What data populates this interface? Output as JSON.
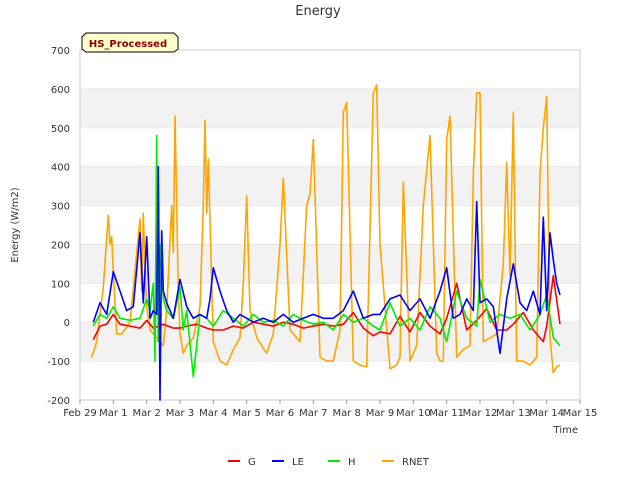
{
  "chart_data": {
    "type": "line",
    "title": "Energy",
    "xlabel": "Time",
    "ylabel": "Energy (W/m2)",
    "badge": "HS_Processed",
    "ylim": [
      -200,
      700
    ],
    "yticks": [
      -200,
      -100,
      0,
      100,
      200,
      300,
      400,
      500,
      600,
      700
    ],
    "xlim": [
      0,
      15
    ],
    "xtick_labels": [
      "Feb 29",
      "Mar 1",
      "Mar 2",
      "Mar 3",
      "Mar 4",
      "Mar 5",
      "Mar 6",
      "Mar 7",
      "Mar 8",
      "Mar 9",
      "Mar 10",
      "Mar 11",
      "Mar 12",
      "Mar 13",
      "Mar 14",
      "Mar 15"
    ],
    "grid": "horizontal bands",
    "legend_position": "bottom",
    "colors": {
      "G": "#ff0000",
      "LE": "#0000ff",
      "H": "#00ee00",
      "RNET": "#ffa500",
      "band": "#f2f2f2",
      "badge_fill": "#ffffcc",
      "badge_text": "#8b0000"
    },
    "series": [
      {
        "name": "G",
        "x": [
          0.4,
          0.6,
          0.8,
          1.0,
          1.2,
          1.5,
          1.8,
          2.0,
          2.2,
          2.5,
          2.8,
          3.0,
          3.2,
          3.5,
          3.8,
          4.0,
          4.3,
          4.6,
          4.9,
          5.2,
          5.5,
          5.8,
          6.1,
          6.4,
          6.7,
          7.0,
          7.3,
          7.6,
          7.9,
          8.2,
          8.5,
          8.8,
          9.0,
          9.3,
          9.6,
          9.9,
          10.2,
          10.5,
          10.8,
          11.0,
          11.3,
          11.6,
          11.9,
          12.2,
          12.5,
          12.8,
          13.0,
          13.3,
          13.6,
          13.9,
          14.0,
          14.2,
          14.4
        ],
        "y": [
          -45,
          -10,
          -5,
          20,
          -5,
          -10,
          -15,
          5,
          -15,
          -5,
          -15,
          -15,
          -10,
          -5,
          -15,
          -20,
          -20,
          -10,
          -15,
          0,
          -5,
          -10,
          0,
          -5,
          -15,
          -10,
          -5,
          -10,
          -5,
          25,
          -15,
          -35,
          -25,
          -30,
          15,
          -25,
          25,
          -10,
          -30,
          10,
          100,
          -20,
          5,
          35,
          -20,
          -20,
          -5,
          25,
          -20,
          -50,
          -10,
          120,
          -5
        ]
      },
      {
        "name": "LE",
        "x": [
          0.4,
          0.6,
          0.8,
          1.0,
          1.2,
          1.4,
          1.6,
          1.8,
          1.9,
          2.0,
          2.1,
          2.2,
          2.3,
          2.35,
          2.4,
          2.45,
          2.5,
          2.6,
          2.8,
          3.0,
          3.2,
          3.4,
          3.6,
          3.8,
          3.9,
          4.0,
          4.2,
          4.4,
          4.6,
          4.8,
          5.0,
          5.2,
          5.5,
          5.8,
          6.1,
          6.4,
          6.7,
          7.0,
          7.3,
          7.6,
          7.9,
          8.2,
          8.5,
          8.8,
          9.0,
          9.3,
          9.6,
          9.9,
          10.2,
          10.5,
          10.8,
          11.0,
          11.2,
          11.4,
          11.6,
          11.8,
          11.9,
          12.0,
          12.2,
          12.4,
          12.6,
          12.8,
          13.0,
          13.2,
          13.4,
          13.6,
          13.8,
          13.9,
          14.0,
          14.1,
          14.2,
          14.3,
          14.4
        ],
        "y": [
          0,
          50,
          20,
          130,
          80,
          30,
          40,
          230,
          50,
          220,
          10,
          30,
          20,
          400,
          -200,
          235,
          80,
          50,
          10,
          110,
          40,
          10,
          20,
          10,
          60,
          140,
          80,
          30,
          0,
          20,
          10,
          0,
          10,
          0,
          20,
          0,
          10,
          20,
          10,
          10,
          30,
          80,
          10,
          20,
          20,
          60,
          70,
          30,
          60,
          10,
          80,
          140,
          10,
          20,
          60,
          30,
          310,
          50,
          60,
          40,
          -80,
          60,
          150,
          50,
          30,
          80,
          20,
          270,
          30,
          230,
          160,
          100,
          70
        ]
      },
      {
        "name": "H",
        "x": [
          0.4,
          0.6,
          0.8,
          1.0,
          1.2,
          1.5,
          1.8,
          2.0,
          2.1,
          2.2,
          2.25,
          2.3,
          2.35,
          2.4,
          2.5,
          2.6,
          2.8,
          3.0,
          3.1,
          3.2,
          3.4,
          3.6,
          3.8,
          4.0,
          4.3,
          4.6,
          4.9,
          5.2,
          5.5,
          5.8,
          6.1,
          6.4,
          6.7,
          7.0,
          7.3,
          7.6,
          7.9,
          8.2,
          8.5,
          8.8,
          9.0,
          9.3,
          9.6,
          9.9,
          10.2,
          10.5,
          10.8,
          11.0,
          11.3,
          11.6,
          11.9,
          12.0,
          12.3,
          12.6,
          12.9,
          13.2,
          13.5,
          13.8,
          14.0,
          14.2,
          14.4
        ],
        "y": [
          -10,
          20,
          10,
          40,
          10,
          5,
          10,
          60,
          30,
          100,
          -100,
          480,
          -50,
          200,
          60,
          30,
          10,
          90,
          -20,
          30,
          -140,
          20,
          10,
          -10,
          30,
          10,
          -10,
          20,
          0,
          5,
          -10,
          20,
          5,
          -5,
          0,
          -20,
          20,
          0,
          10,
          -10,
          -20,
          50,
          -10,
          10,
          -20,
          40,
          10,
          -50,
          80,
          10,
          -10,
          110,
          0,
          20,
          10,
          20,
          -20,
          20,
          70,
          -40,
          -60
        ]
      },
      {
        "name": "RNET",
        "x": [
          0.35,
          0.5,
          0.7,
          0.85,
          0.9,
          0.95,
          1.0,
          1.1,
          1.25,
          1.5,
          1.8,
          1.85,
          1.9,
          1.95,
          2.0,
          2.1,
          2.3,
          2.5,
          2.6,
          2.75,
          2.8,
          2.85,
          2.95,
          3.0,
          3.1,
          3.2,
          3.4,
          3.6,
          3.7,
          3.75,
          3.8,
          3.85,
          4.0,
          4.2,
          4.4,
          4.6,
          4.8,
          4.9,
          5.0,
          5.1,
          5.3,
          5.6,
          5.8,
          6.0,
          6.1,
          6.3,
          6.6,
          6.8,
          6.9,
          7.0,
          7.2,
          7.4,
          7.6,
          7.8,
          7.9,
          8.0,
          8.2,
          8.4,
          8.6,
          8.8,
          8.9,
          9.0,
          9.3,
          9.5,
          9.6,
          9.7,
          9.9,
          10.1,
          10.3,
          10.5,
          10.7,
          10.8,
          10.9,
          11.0,
          11.1,
          11.3,
          11.5,
          11.7,
          11.8,
          11.9,
          12.0,
          12.1,
          12.3,
          12.5,
          12.7,
          12.8,
          12.9,
          13.0,
          13.1,
          13.3,
          13.5,
          13.7,
          13.8,
          13.9,
          14.0,
          14.1,
          14.2,
          14.3,
          14.4
        ],
        "y": [
          -90,
          -50,
          90,
          275,
          200,
          220,
          130,
          -30,
          -30,
          0,
          265,
          80,
          280,
          150,
          40,
          -20,
          -40,
          -60,
          30,
          300,
          180,
          530,
          80,
          -30,
          -80,
          -60,
          -40,
          40,
          300,
          520,
          280,
          420,
          -50,
          -100,
          -110,
          -70,
          -40,
          100,
          325,
          30,
          -40,
          -80,
          -30,
          200,
          370,
          -20,
          -50,
          300,
          330,
          470,
          -90,
          -100,
          -100,
          -20,
          540,
          565,
          -100,
          -110,
          -115,
          590,
          610,
          200,
          -120,
          -110,
          -90,
          360,
          -100,
          -60,
          300,
          480,
          -80,
          -100,
          -100,
          470,
          530,
          -90,
          -70,
          -60,
          380,
          590,
          590,
          -50,
          -40,
          -30,
          150,
          410,
          120,
          540,
          -100,
          -100,
          -110,
          -90,
          380,
          500,
          580,
          -40,
          -130,
          -115,
          -110
        ]
      }
    ]
  }
}
